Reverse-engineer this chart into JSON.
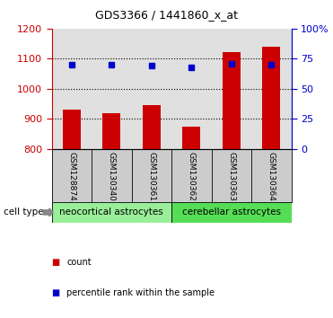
{
  "title": "GDS3366 / 1441860_x_at",
  "samples": [
    "GSM128874",
    "GSM130340",
    "GSM130361",
    "GSM130362",
    "GSM130363",
    "GSM130364"
  ],
  "counts": [
    930,
    918,
    946,
    876,
    1122,
    1140
  ],
  "percentile_ranks": [
    70,
    70,
    69,
    68,
    71,
    70
  ],
  "ylim_left": [
    800,
    1200
  ],
  "ylim_right": [
    0,
    100
  ],
  "yticks_left": [
    800,
    900,
    1000,
    1100,
    1200
  ],
  "yticks_right": [
    0,
    25,
    50,
    75,
    100
  ],
  "bar_color": "#cc0000",
  "dot_color": "#0000cc",
  "groups": [
    {
      "label": "neocortical astrocytes",
      "indices": [
        0,
        1,
        2
      ],
      "color": "#99ee99"
    },
    {
      "label": "cerebellar astrocytes",
      "indices": [
        3,
        4,
        5
      ],
      "color": "#55dd55"
    }
  ],
  "cell_type_label": "cell type",
  "legend_items": [
    {
      "color": "#cc0000",
      "label": "count"
    },
    {
      "color": "#0000cc",
      "label": "percentile rank within the sample"
    }
  ],
  "background_color": "#ffffff",
  "plot_bg_color": "#e0e0e0",
  "grid_color": "#000000",
  "tick_color_left": "#cc0000",
  "tick_color_right": "#0000cc",
  "label_bg_color": "#cccccc"
}
